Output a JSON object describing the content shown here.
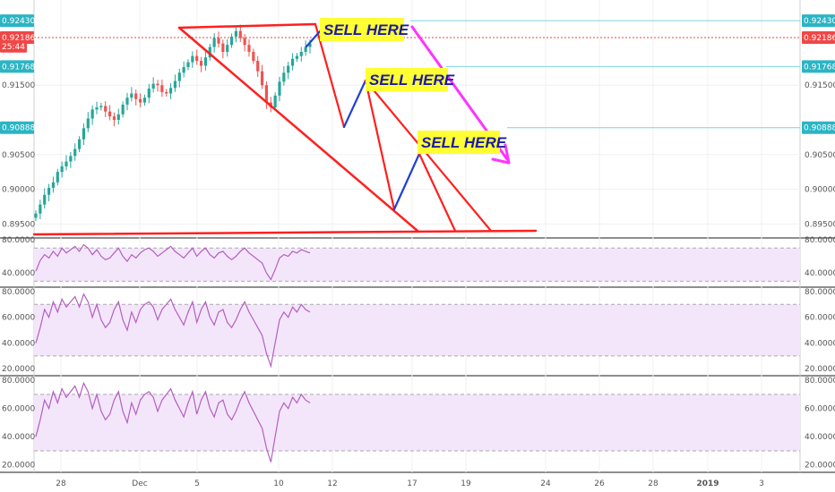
{
  "chart_data": [
    {
      "type": "line",
      "series_kind": "candlestick",
      "ylim": [
        0.8935,
        0.9265
      ],
      "y_ticks": [
        "0.89500",
        "0.90000",
        "0.90500",
        "0.91500"
      ],
      "x_ticks": [
        "28",
        "Dec",
        "5",
        "10",
        "12",
        "17",
        "19",
        "24",
        "26",
        "28",
        "2019",
        "3"
      ],
      "close_series": [
        0.8965,
        0.8978,
        0.8992,
        0.9002,
        0.901,
        0.9025,
        0.9033,
        0.904,
        0.9048,
        0.9058,
        0.9072,
        0.9088,
        0.9102,
        0.9115,
        0.9118,
        0.912,
        0.9112,
        0.9105,
        0.91,
        0.9108,
        0.9122,
        0.9132,
        0.9138,
        0.913,
        0.9125,
        0.9132,
        0.9145,
        0.9152,
        0.915,
        0.914,
        0.9138,
        0.9146,
        0.9156,
        0.9168,
        0.9176,
        0.9183,
        0.9192,
        0.9185,
        0.9178,
        0.919,
        0.9205,
        0.9218,
        0.921,
        0.9198,
        0.9208,
        0.922,
        0.9228,
        0.9218,
        0.9208,
        0.9198,
        0.9185,
        0.917,
        0.915,
        0.9125,
        0.9118,
        0.9135,
        0.9155,
        0.9168,
        0.9178,
        0.9188,
        0.9192,
        0.9198,
        0.9205,
        0.921
      ],
      "price_labels": [
        {
          "text": "0.92430",
          "value": 0.9243,
          "color": "#2bb5c4"
        },
        {
          "text": "0.92186",
          "value": 0.92186,
          "color": "#f04646"
        },
        {
          "text": "25:44",
          "value": 0.9206,
          "color": "#f04646"
        },
        {
          "text": "0.91768",
          "value": 0.91768,
          "color": "#2bb5c4"
        },
        {
          "text": "0.90888",
          "value": 0.90888,
          "color": "#2bb5c4"
        }
      ],
      "right_price_labels": [
        {
          "text": "0.92430",
          "value": 0.9243,
          "color": "#2bb5c4"
        },
        {
          "text": "0.92186",
          "value": 0.92186,
          "color": "#f04646"
        },
        {
          "text": "0.91768",
          "value": 0.91768,
          "color": "#2bb5c4"
        },
        {
          "text": "0.90888",
          "value": 0.90888,
          "color": "#2bb5c4"
        }
      ],
      "annotations": [
        "SELL HERE",
        "SELL HERE",
        "SELL HERE"
      ],
      "colors": {
        "up": "#26a69a",
        "down": "#ef5350",
        "trend": "#ff1f1f",
        "bounce": "#1f3fd6",
        "arrow": "#ff33ff",
        "level": "#7fd3e0"
      }
    },
    {
      "type": "line",
      "name": "",
      "ylim": [
        25,
        80
      ],
      "y_ticks": [
        "80.0000",
        "40.0000"
      ],
      "band": [
        30,
        70
      ],
      "values": [
        42,
        55,
        62,
        58,
        66,
        60,
        70,
        64,
        68,
        72,
        66,
        74,
        70,
        62,
        68,
        60,
        56,
        58,
        64,
        70,
        60,
        54,
        62,
        58,
        64,
        68,
        70,
        66,
        60,
        64,
        68,
        72,
        66,
        62,
        58,
        64,
        70,
        60,
        66,
        70,
        62,
        58,
        64,
        66,
        60,
        56,
        60,
        66,
        70,
        64,
        60,
        56,
        52,
        40,
        32,
        44,
        58,
        62,
        60,
        66,
        64,
        68,
        66,
        64
      ]
    },
    {
      "type": "line",
      "name": "",
      "ylim": [
        16,
        82
      ],
      "y_ticks": [
        "80.0000",
        "60.0000",
        "40.0000",
        "20.0000"
      ],
      "band": [
        30,
        70
      ],
      "values": [
        40,
        52,
        66,
        60,
        72,
        64,
        74,
        68,
        72,
        76,
        68,
        78,
        72,
        60,
        70,
        58,
        52,
        56,
        66,
        72,
        58,
        50,
        64,
        56,
        66,
        70,
        72,
        68,
        58,
        66,
        70,
        74,
        66,
        60,
        54,
        64,
        72,
        56,
        66,
        72,
        60,
        54,
        64,
        66,
        56,
        52,
        58,
        66,
        72,
        64,
        58,
        52,
        46,
        32,
        22,
        40,
        58,
        64,
        60,
        68,
        64,
        70,
        66,
        64
      ]
    },
    {
      "type": "line",
      "name": "",
      "ylim": [
        16,
        82
      ],
      "y_ticks": [
        "80.0000",
        "60.0000",
        "40.0000",
        "20.0000"
      ],
      "band": [
        30,
        70
      ],
      "values": [
        40,
        52,
        66,
        60,
        72,
        64,
        74,
        68,
        72,
        76,
        68,
        78,
        72,
        60,
        70,
        58,
        52,
        56,
        66,
        72,
        58,
        50,
        64,
        56,
        66,
        70,
        72,
        68,
        58,
        66,
        70,
        74,
        66,
        60,
        54,
        64,
        72,
        56,
        66,
        72,
        60,
        54,
        64,
        66,
        56,
        52,
        58,
        66,
        72,
        64,
        58,
        52,
        46,
        32,
        22,
        40,
        58,
        64,
        60,
        68,
        64,
        70,
        66,
        64
      ]
    }
  ]
}
